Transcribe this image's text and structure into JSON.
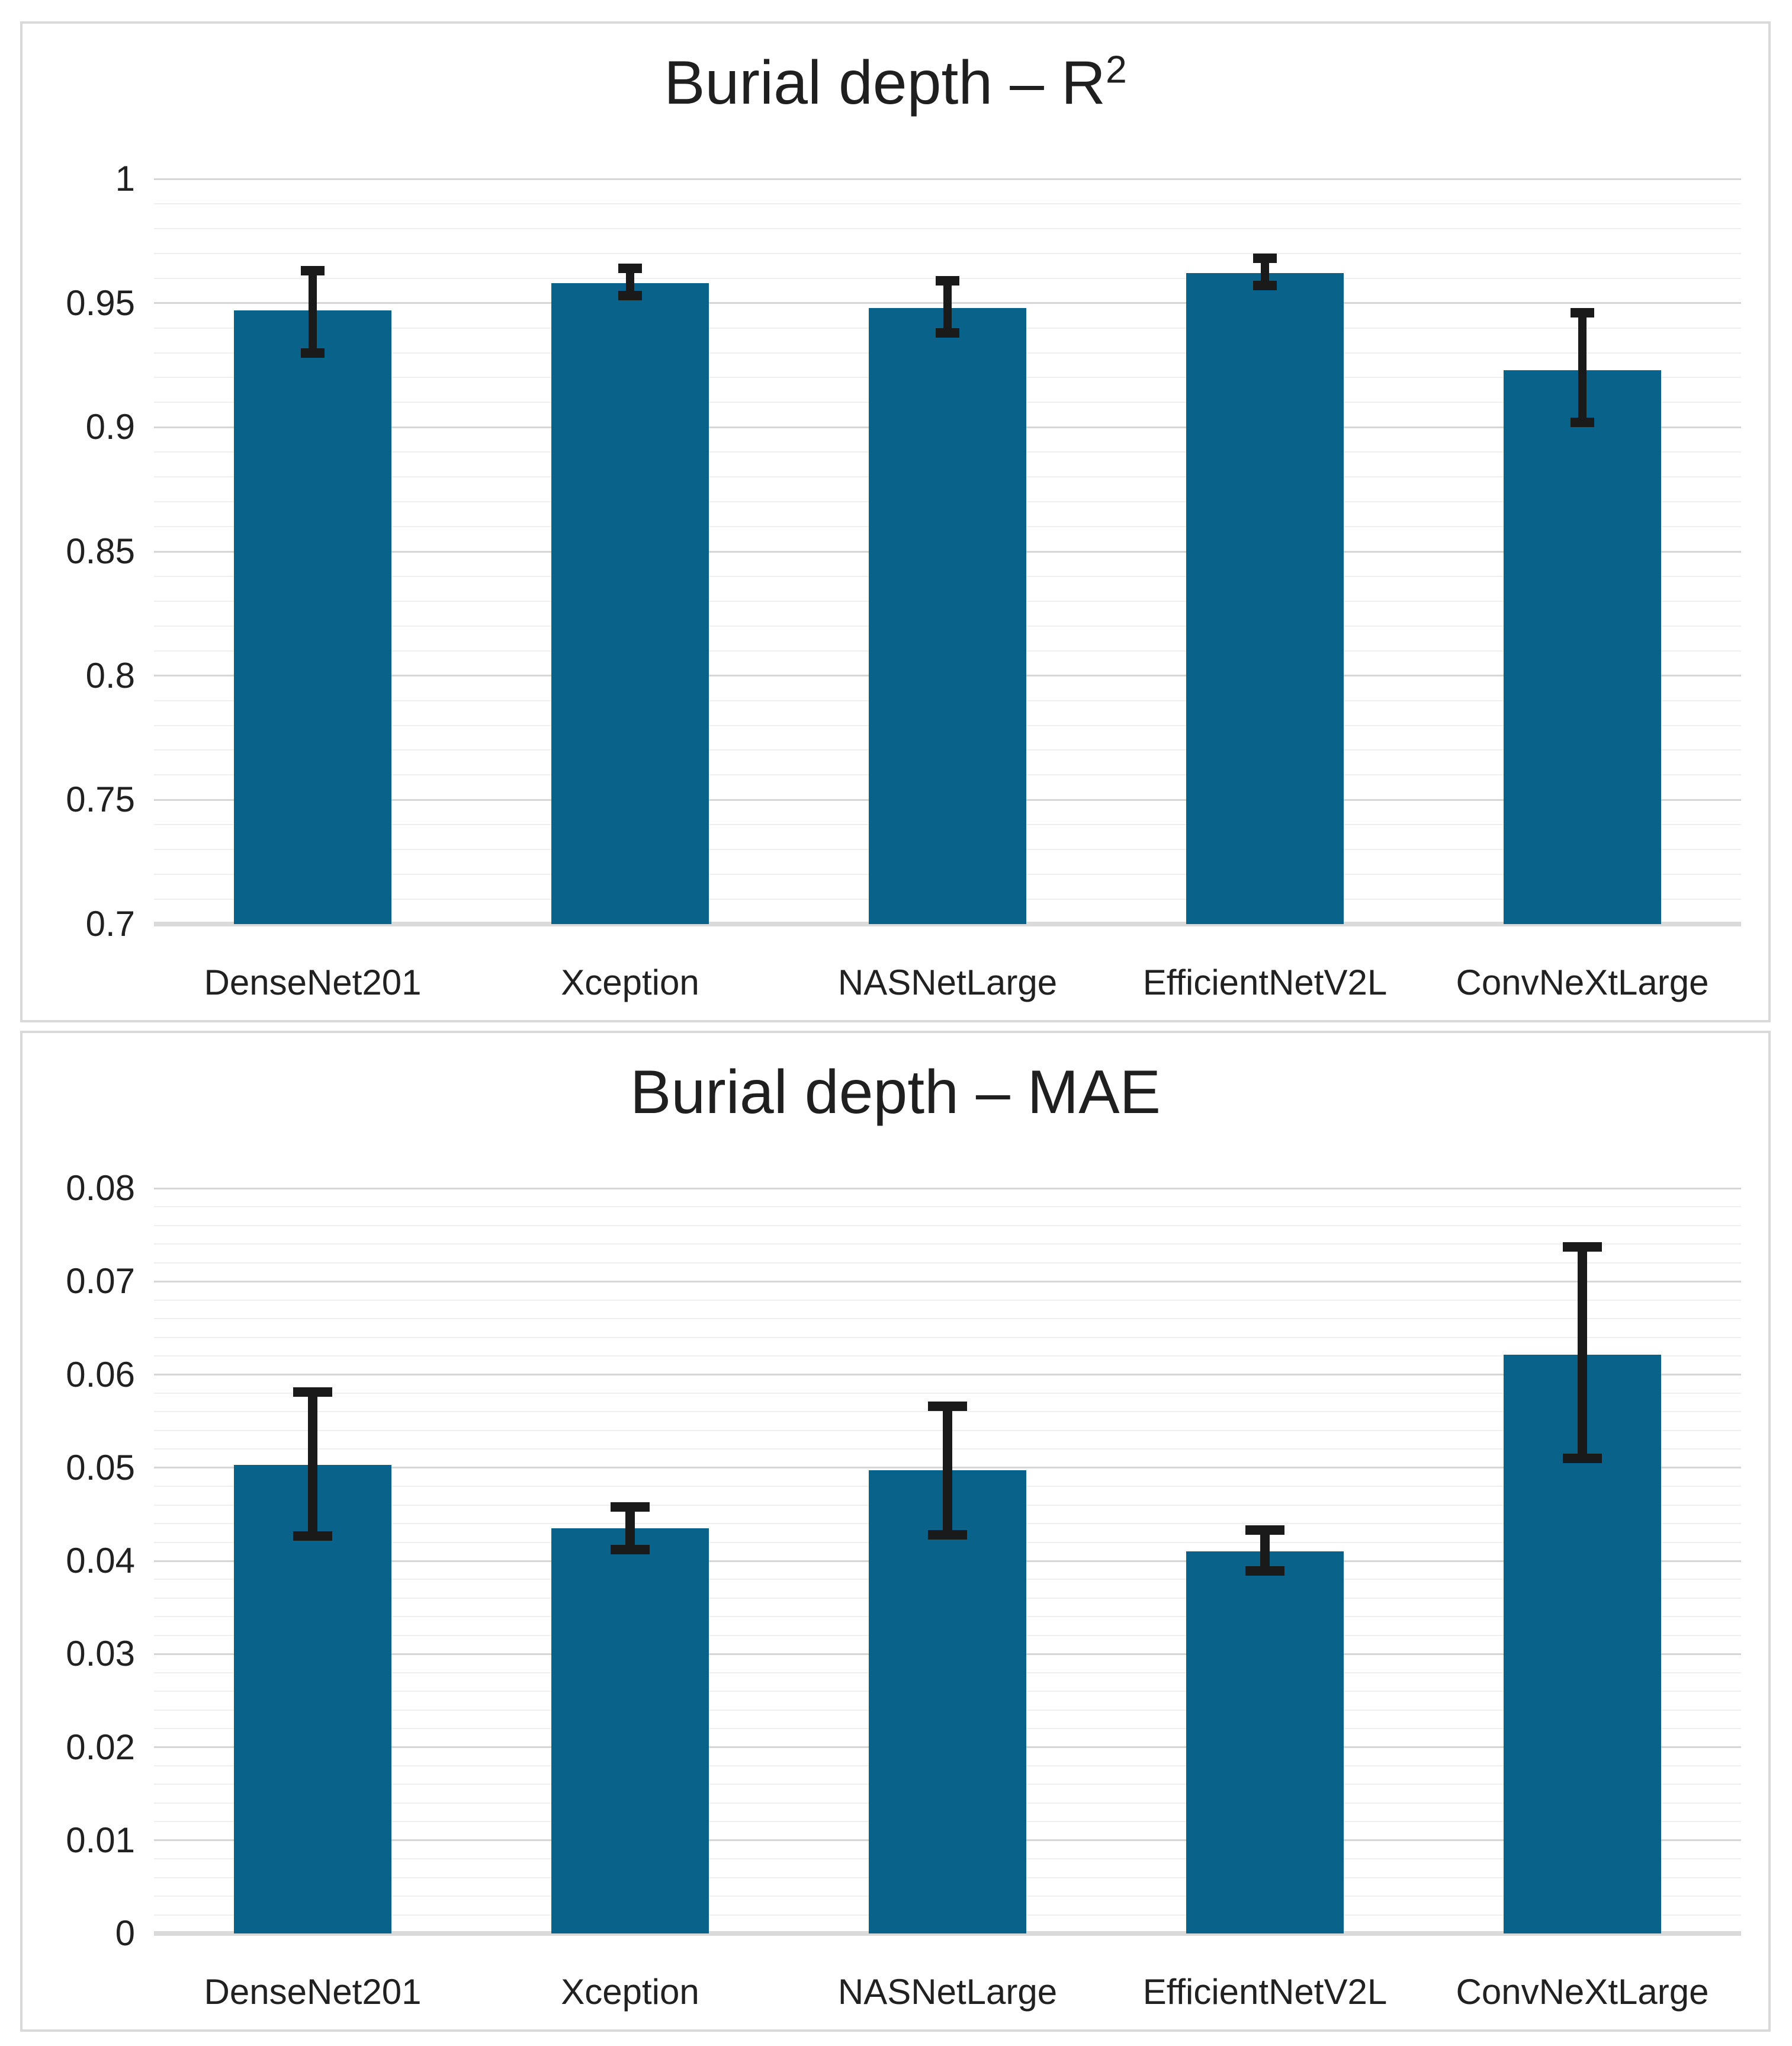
{
  "figure": {
    "description": "Two stacked single-series bar chart panels comparing five CNN backbone models",
    "background": "#ffffff"
  },
  "colors": {
    "bar_fill": "#086289",
    "error_bar": "#1a1a1a",
    "grid_minor": "#efefef",
    "grid_major": "#d6d6d6",
    "axis_line": "#d9d9d9",
    "panel_border": "#d9d9d9",
    "text": "#212121",
    "title_text": "#1f1f1f"
  },
  "chart_data": [
    {
      "type": "bar",
      "title": "Burial depth – R²",
      "title_main": "Burial depth – R",
      "title_sup": "2",
      "categories": [
        "DenseNet201",
        "Xception",
        "NASNetLarge",
        "EfficientNetV2L",
        "ConvNeXtLarge"
      ],
      "values": [
        0.947,
        0.958,
        0.948,
        0.962,
        0.923
      ],
      "error_low": [
        0.93,
        0.953,
        0.938,
        0.957,
        0.902
      ],
      "error_high": [
        0.963,
        0.964,
        0.959,
        0.968,
        0.946
      ],
      "xlabel": "",
      "ylabel": "",
      "ylim": [
        0.7,
        1.0
      ],
      "minor_step": 0.01,
      "ytick_values": [
        1,
        0.95,
        0.9,
        0.85,
        0.8,
        0.75,
        0.7
      ],
      "ytick_labels": [
        "1",
        "0.95",
        "0.9",
        "0.85",
        "0.8",
        "0.75",
        "0.7"
      ],
      "grid": true,
      "legend": null,
      "error_bars": true
    },
    {
      "type": "bar",
      "title": "Burial depth – MAE",
      "title_main": "Burial depth – MAE",
      "title_sup": "",
      "categories": [
        "DenseNet201",
        "Xception",
        "NASNetLarge",
        "EfficientNetV2L",
        "ConvNeXtLarge"
      ],
      "values": [
        0.0503,
        0.0435,
        0.0497,
        0.041,
        0.0621
      ],
      "error_low": [
        0.0427,
        0.0412,
        0.0428,
        0.0389,
        0.051
      ],
      "error_high": [
        0.0581,
        0.0458,
        0.0566,
        0.0433,
        0.0737
      ],
      "xlabel": "",
      "ylabel": "",
      "ylim": [
        0,
        0.08
      ],
      "minor_step": 0.002,
      "ytick_values": [
        0.08,
        0.07,
        0.06,
        0.05,
        0.04,
        0.03,
        0.02,
        0.01,
        0
      ],
      "ytick_labels": [
        "0.08",
        "0.07",
        "0.06",
        "0.05",
        "0.04",
        "0.03",
        "0.02",
        "0.01",
        "0"
      ],
      "grid": true,
      "legend": null,
      "error_bars": true
    }
  ]
}
